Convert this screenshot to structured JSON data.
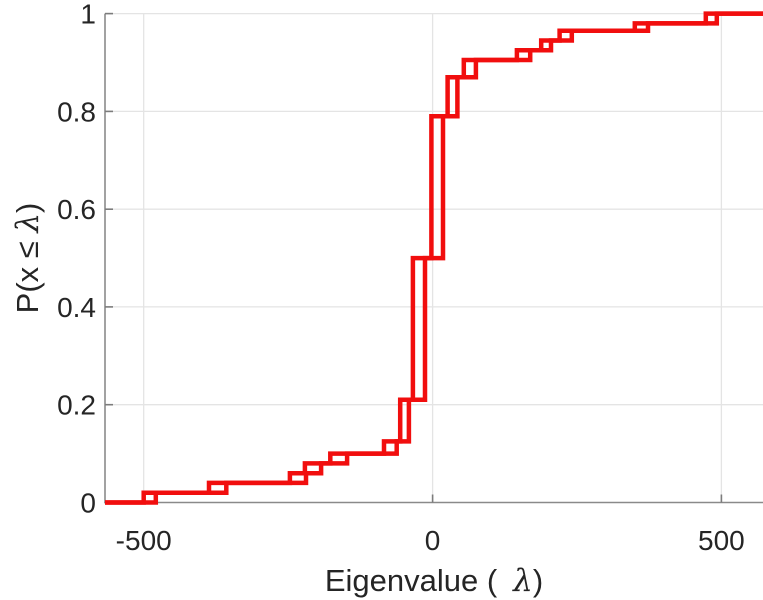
{
  "figure": {
    "background": "#ffffff",
    "axes_color": "#8a8a8a",
    "grid_color": "#e4e4e4",
    "text_color": "#252525"
  },
  "chart_data": {
    "type": "line",
    "subtype": "ecdf-stairs",
    "title": "",
    "xlabel": {
      "prefix": "Eigenvalue (",
      "symbol": "λ",
      "suffix": ")",
      "full": "Eigenvalue ( λ)"
    },
    "ylabel": {
      "prefix": "P(x ≤ ",
      "symbol": "λ",
      "suffix": ")",
      "full": "P(x ≤ λ)"
    },
    "xlim": [
      -567,
      572
    ],
    "ylim": [
      0,
      1
    ],
    "grid": true,
    "legend": "none",
    "line_color": "#f10e0e",
    "line_width": 4.5,
    "xticks": [
      {
        "value": -500,
        "label": "-500"
      },
      {
        "value": 0,
        "label": "0"
      },
      {
        "value": 500,
        "label": "500"
      }
    ],
    "yticks": [
      {
        "value": 0,
        "label": "0"
      },
      {
        "value": 0.2,
        "label": "0.2"
      },
      {
        "value": 0.4,
        "label": "0.4"
      },
      {
        "value": 0.6,
        "label": "0.6"
      },
      {
        "value": 0.8,
        "label": "0.8"
      },
      {
        "value": 1,
        "label": "1"
      }
    ],
    "levels": [
      0.02,
      0.04,
      0.06,
      0.08,
      0.1,
      0.125,
      0.21,
      0.5,
      0.79,
      0.87,
      0.905,
      0.925,
      0.945,
      0.965,
      0.98,
      1.0
    ],
    "series": [
      {
        "name": "ecdf-curve-1",
        "start_y": 0,
        "step_x": [
          -500,
          -387,
          -247,
          -221,
          -177,
          -84,
          -56,
          -34,
          -2,
          26,
          54,
          146,
          188,
          220,
          350,
          473
        ],
        "step_y": [
          0.02,
          0.04,
          0.06,
          0.08,
          0.1,
          0.125,
          0.21,
          0.5,
          0.79,
          0.87,
          0.905,
          0.925,
          0.945,
          0.965,
          0.98,
          1.0
        ]
      },
      {
        "name": "ecdf-curve-2",
        "start_y": 0,
        "step_x": [
          -479,
          -357,
          -219,
          -193,
          -148,
          -62,
          -41,
          -13,
          18,
          43,
          75,
          169,
          205,
          241,
          373,
          492
        ],
        "step_y": [
          0.02,
          0.04,
          0.06,
          0.08,
          0.1,
          0.125,
          0.21,
          0.5,
          0.79,
          0.87,
          0.905,
          0.925,
          0.945,
          0.965,
          0.98,
          1.0
        ]
      }
    ]
  }
}
